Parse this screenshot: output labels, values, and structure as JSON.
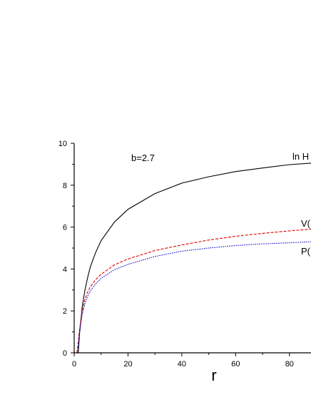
{
  "chart_data": {
    "type": "line",
    "title": "",
    "xlabel": "r",
    "ylabel": "",
    "xlim": [
      0,
      88
    ],
    "ylim": [
      0,
      10
    ],
    "x_ticks": [
      0,
      20,
      40,
      60,
      80
    ],
    "y_ticks": [
      0,
      2,
      4,
      6,
      8,
      10
    ],
    "x_tick_labels": [
      "0",
      "20",
      "40",
      "60",
      "80"
    ],
    "y_tick_labels": [
      "0",
      "2",
      "4",
      "6",
      "8",
      "10"
    ],
    "grid": false,
    "annotation": "b=2.7",
    "series": [
      {
        "name": "ln H",
        "color": "#000000",
        "dash": "solid",
        "x": [
          1.5,
          2,
          3,
          4,
          5,
          6,
          8,
          10,
          15,
          20,
          30,
          40,
          50,
          60,
          70,
          80,
          88
        ],
        "y": [
          0.0,
          0.9,
          2.2,
          3.0,
          3.6,
          4.1,
          4.8,
          5.35,
          6.25,
          6.85,
          7.6,
          8.1,
          8.4,
          8.65,
          8.82,
          8.98,
          9.05
        ]
      },
      {
        "name": "V(",
        "color": "#e00000",
        "dash": "dashed",
        "x": [
          1.0,
          1.5,
          2,
          3,
          4,
          5,
          6,
          8,
          10,
          15,
          20,
          30,
          40,
          50,
          60,
          70,
          80,
          88
        ],
        "y": [
          0.0,
          0.5,
          1.1,
          2.0,
          2.55,
          2.9,
          3.15,
          3.5,
          3.75,
          4.2,
          4.48,
          4.88,
          5.15,
          5.38,
          5.56,
          5.7,
          5.82,
          5.9
        ]
      },
      {
        "name": "P(",
        "color": "#0000cc",
        "dash": "dotted",
        "x": [
          1.2,
          1.5,
          2,
          3,
          4,
          5,
          6,
          8,
          10,
          15,
          20,
          30,
          40,
          50,
          60,
          70,
          80,
          88
        ],
        "y": [
          0.0,
          0.4,
          1.0,
          1.85,
          2.35,
          2.7,
          2.95,
          3.3,
          3.55,
          3.97,
          4.22,
          4.6,
          4.85,
          5.0,
          5.12,
          5.2,
          5.25,
          5.3
        ]
      }
    ],
    "series_labels": [
      "ln H",
      "V(",
      "P("
    ]
  }
}
